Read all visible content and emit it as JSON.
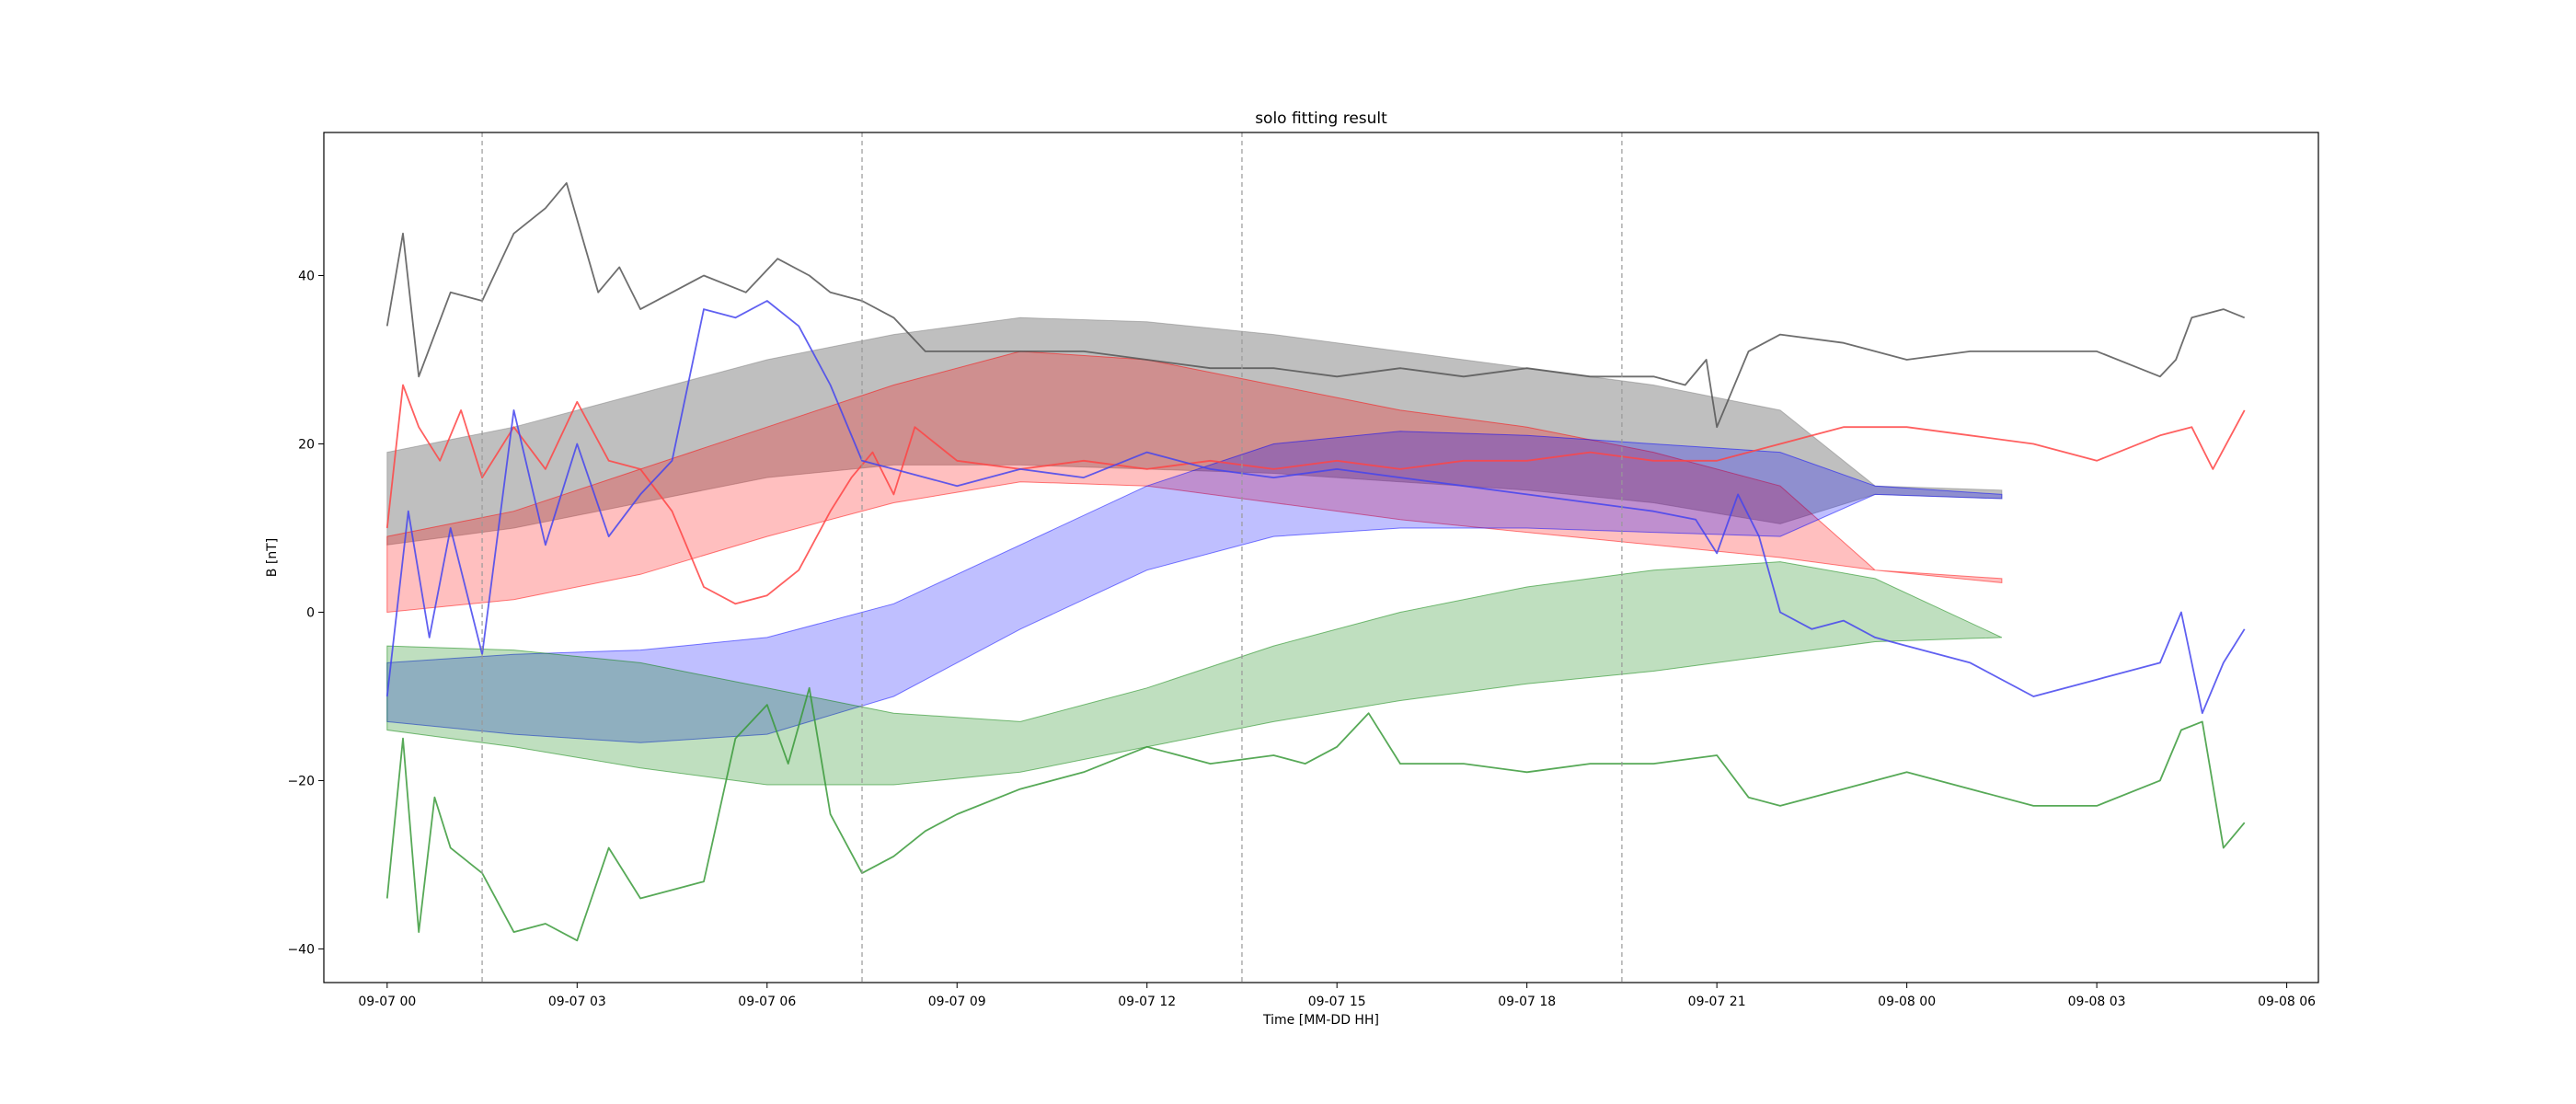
{
  "chart_data": {
    "type": "line",
    "title": "solo fitting result",
    "xlabel": "Time [MM-DD HH]",
    "ylabel": "B [nT]",
    "xlim": [
      "2020-09-06T23:00",
      "2020-09-08T06:30"
    ],
    "ylim": [
      -44,
      57
    ],
    "x_ticks": [
      {
        "t": "2020-09-07T00:00",
        "label": "09-07 00"
      },
      {
        "t": "2020-09-07T03:00",
        "label": "09-07 03"
      },
      {
        "t": "2020-09-07T06:00",
        "label": "09-07 06"
      },
      {
        "t": "2020-09-07T09:00",
        "label": "09-07 09"
      },
      {
        "t": "2020-09-07T12:00",
        "label": "09-07 12"
      },
      {
        "t": "2020-09-07T15:00",
        "label": "09-07 15"
      },
      {
        "t": "2020-09-07T18:00",
        "label": "09-07 18"
      },
      {
        "t": "2020-09-07T21:00",
        "label": "09-07 21"
      },
      {
        "t": "2020-09-08T00:00",
        "label": "09-08 00"
      },
      {
        "t": "2020-09-08T03:00",
        "label": "09-08 03"
      },
      {
        "t": "2020-09-08T06:00",
        "label": "09-08 06"
      }
    ],
    "y_ticks": [
      {
        "v": -40,
        "label": "−40"
      },
      {
        "v": -20,
        "label": "−20"
      },
      {
        "v": 0,
        "label": "0"
      },
      {
        "v": 20,
        "label": "20"
      },
      {
        "v": 40,
        "label": "40"
      }
    ],
    "vlines": [
      "2020-09-07T01:30",
      "2020-09-07T07:30",
      "2020-09-07T13:30",
      "2020-09-07T19:30"
    ],
    "grid": false,
    "bands": [
      {
        "color": "#808080",
        "opacity": 0.5,
        "x": [
          "2020-09-07T00:00",
          "2020-09-07T02:00",
          "2020-09-07T04:00",
          "2020-09-07T06:00",
          "2020-09-07T08:00",
          "2020-09-07T10:00",
          "2020-09-07T12:00",
          "2020-09-07T14:00",
          "2020-09-07T16:00",
          "2020-09-07T18:00",
          "2020-09-07T20:00",
          "2020-09-07T22:00",
          "2020-09-07T23:30",
          "2020-09-08T01:30"
        ],
        "upper": [
          19,
          22,
          26,
          30,
          33,
          35,
          34.5,
          33,
          31,
          29,
          27,
          24,
          15,
          14.5
        ],
        "lower": [
          8,
          10,
          13,
          16,
          17.5,
          17.5,
          17,
          16.5,
          15.5,
          14.5,
          13,
          10.5,
          14,
          13.5
        ]
      },
      {
        "color": "#ff0000",
        "opacity": 0.25,
        "x": [
          "2020-09-07T00:00",
          "2020-09-07T02:00",
          "2020-09-07T04:00",
          "2020-09-07T06:00",
          "2020-09-07T08:00",
          "2020-09-07T10:00",
          "2020-09-07T12:00",
          "2020-09-07T14:00",
          "2020-09-07T16:00",
          "2020-09-07T18:00",
          "2020-09-07T20:00",
          "2020-09-07T22:00",
          "2020-09-07T23:30",
          "2020-09-08T01:30"
        ],
        "upper": [
          9,
          12,
          17,
          22,
          27,
          31,
          30,
          27,
          24,
          22,
          19,
          15,
          5,
          4
        ],
        "lower": [
          0,
          1.5,
          4.5,
          9,
          13,
          15.5,
          15,
          13,
          11,
          9.5,
          8,
          6.5,
          5,
          3.5
        ]
      },
      {
        "color": "#0000ff",
        "opacity": 0.25,
        "x": [
          "2020-09-07T00:00",
          "2020-09-07T02:00",
          "2020-09-07T04:00",
          "2020-09-07T06:00",
          "2020-09-07T08:00",
          "2020-09-07T10:00",
          "2020-09-07T12:00",
          "2020-09-07T14:00",
          "2020-09-07T16:00",
          "2020-09-07T18:00",
          "2020-09-07T20:00",
          "2020-09-07T22:00",
          "2020-09-07T23:30",
          "2020-09-08T01:30"
        ],
        "upper": [
          -6,
          -5,
          -4.5,
          -3,
          1,
          8,
          15,
          20,
          21.5,
          21,
          20,
          19,
          15,
          14
        ],
        "lower": [
          -13,
          -14.5,
          -15.5,
          -14.5,
          -10,
          -2,
          5,
          9,
          10,
          10,
          9.5,
          9,
          14,
          13.5
        ]
      },
      {
        "color": "#008000",
        "opacity": 0.25,
        "x": [
          "2020-09-07T00:00",
          "2020-09-07T02:00",
          "2020-09-07T04:00",
          "2020-09-07T06:00",
          "2020-09-07T08:00",
          "2020-09-07T10:00",
          "2020-09-07T12:00",
          "2020-09-07T14:00",
          "2020-09-07T16:00",
          "2020-09-07T18:00",
          "2020-09-07T20:00",
          "2020-09-07T22:00",
          "2020-09-07T23:30",
          "2020-09-08T01:30"
        ],
        "upper": [
          -4,
          -4.5,
          -6,
          -9,
          -12,
          -13,
          -9,
          -4,
          0,
          3,
          5,
          6,
          4,
          -3
        ],
        "lower": [
          -14,
          -16,
          -18.5,
          -20.5,
          -20.5,
          -19,
          -16,
          -13,
          -10.5,
          -8.5,
          -7,
          -5,
          -3.5,
          -3
        ]
      }
    ],
    "series": [
      {
        "color": "#555555",
        "x": [
          "2020-09-07T00:00",
          "2020-09-07T00:15",
          "2020-09-07T00:30",
          "2020-09-07T01:00",
          "2020-09-07T01:30",
          "2020-09-07T02:00",
          "2020-09-07T02:30",
          "2020-09-07T02:50",
          "2020-09-07T03:20",
          "2020-09-07T03:40",
          "2020-09-07T04:00",
          "2020-09-07T05:00",
          "2020-09-07T05:40",
          "2020-09-07T06:10",
          "2020-09-07T06:40",
          "2020-09-07T07:00",
          "2020-09-07T07:30",
          "2020-09-07T08:00",
          "2020-09-07T08:30",
          "2020-09-07T09:00",
          "2020-09-07T10:00",
          "2020-09-07T11:00",
          "2020-09-07T12:00",
          "2020-09-07T13:00",
          "2020-09-07T14:00",
          "2020-09-07T15:00",
          "2020-09-07T16:00",
          "2020-09-07T17:00",
          "2020-09-07T18:00",
          "2020-09-07T19:00",
          "2020-09-07T20:00",
          "2020-09-07T20:30",
          "2020-09-07T20:50",
          "2020-09-07T21:00",
          "2020-09-07T21:30",
          "2020-09-07T22:00",
          "2020-09-07T23:00",
          "2020-09-08T00:00",
          "2020-09-08T01:00",
          "2020-09-08T02:00",
          "2020-09-08T03:00",
          "2020-09-08T03:40",
          "2020-09-08T04:00",
          "2020-09-08T04:15",
          "2020-09-08T04:30",
          "2020-09-08T05:00",
          "2020-09-08T05:20"
        ],
        "y": [
          34,
          45,
          28,
          38,
          37,
          45,
          48,
          51,
          38,
          41,
          36,
          40,
          38,
          42,
          40,
          38,
          37,
          35,
          31,
          31,
          31,
          31,
          30,
          29,
          29,
          28,
          29,
          28,
          29,
          28,
          28,
          27,
          30,
          22,
          31,
          33,
          32,
          30,
          31,
          31,
          31,
          29,
          28,
          30,
          35,
          36,
          35
        ]
      },
      {
        "color": "#ff4444",
        "x": [
          "2020-09-07T00:00",
          "2020-09-07T00:15",
          "2020-09-07T00:30",
          "2020-09-07T00:50",
          "2020-09-07T01:10",
          "2020-09-07T01:30",
          "2020-09-07T02:00",
          "2020-09-07T02:30",
          "2020-09-07T03:00",
          "2020-09-07T03:30",
          "2020-09-07T04:00",
          "2020-09-07T04:30",
          "2020-09-07T05:00",
          "2020-09-07T05:30",
          "2020-09-07T06:00",
          "2020-09-07T06:30",
          "2020-09-07T07:00",
          "2020-09-07T07:20",
          "2020-09-07T07:40",
          "2020-09-07T08:00",
          "2020-09-07T08:20",
          "2020-09-07T09:00",
          "2020-09-07T10:00",
          "2020-09-07T11:00",
          "2020-09-07T12:00",
          "2020-09-07T13:00",
          "2020-09-07T14:00",
          "2020-09-07T15:00",
          "2020-09-07T16:00",
          "2020-09-07T17:00",
          "2020-09-07T18:00",
          "2020-09-07T19:00",
          "2020-09-07T20:00",
          "2020-09-07T21:00",
          "2020-09-07T22:00",
          "2020-09-07T23:00",
          "2020-09-08T00:00",
          "2020-09-08T01:00",
          "2020-09-08T02:00",
          "2020-09-08T03:00",
          "2020-09-08T04:00",
          "2020-09-08T04:30",
          "2020-09-08T04:50",
          "2020-09-08T05:20"
        ],
        "y": [
          10,
          27,
          22,
          18,
          24,
          16,
          22,
          17,
          25,
          18,
          17,
          12,
          3,
          1,
          2,
          5,
          12,
          16,
          19,
          14,
          22,
          18,
          17,
          18,
          17,
          18,
          17,
          18,
          17,
          18,
          18,
          19,
          18,
          18,
          20,
          22,
          22,
          21,
          20,
          18,
          21,
          22,
          17,
          24
        ]
      },
      {
        "color": "#4444ee",
        "x": [
          "2020-09-07T00:00",
          "2020-09-07T00:20",
          "2020-09-07T00:40",
          "2020-09-07T01:00",
          "2020-09-07T01:30",
          "2020-09-07T02:00",
          "2020-09-07T02:30",
          "2020-09-07T03:00",
          "2020-09-07T03:30",
          "2020-09-07T04:00",
          "2020-09-07T04:30",
          "2020-09-07T05:00",
          "2020-09-07T05:30",
          "2020-09-07T06:00",
          "2020-09-07T06:30",
          "2020-09-07T07:00",
          "2020-09-07T07:30",
          "2020-09-07T08:00",
          "2020-09-07T09:00",
          "2020-09-07T10:00",
          "2020-09-07T11:00",
          "2020-09-07T12:00",
          "2020-09-07T13:00",
          "2020-09-07T14:00",
          "2020-09-07T15:00",
          "2020-09-07T16:00",
          "2020-09-07T17:00",
          "2020-09-07T18:00",
          "2020-09-07T19:00",
          "2020-09-07T20:00",
          "2020-09-07T20:40",
          "2020-09-07T21:00",
          "2020-09-07T21:20",
          "2020-09-07T21:40",
          "2020-09-07T22:00",
          "2020-09-07T22:30",
          "2020-09-07T23:00",
          "2020-09-07T23:30",
          "2020-09-08T00:00",
          "2020-09-08T01:00",
          "2020-09-08T02:00",
          "2020-09-08T03:00",
          "2020-09-08T03:30",
          "2020-09-08T04:00",
          "2020-09-08T04:20",
          "2020-09-08T04:40",
          "2020-09-08T05:00",
          "2020-09-08T05:20"
        ],
        "y": [
          -10,
          12,
          -3,
          10,
          -5,
          24,
          8,
          20,
          9,
          14,
          18,
          36,
          35,
          37,
          34,
          27,
          18,
          17,
          15,
          17,
          16,
          19,
          17,
          16,
          17,
          16,
          15,
          14,
          13,
          12,
          11,
          7,
          14,
          9,
          0,
          -2,
          -1,
          -3,
          -4,
          -6,
          -10,
          -8,
          -7,
          -6,
          0,
          -12,
          -6,
          -2
        ]
      },
      {
        "color": "#3a9a3a",
        "x": [
          "2020-09-07T00:00",
          "2020-09-07T00:15",
          "2020-09-07T00:30",
          "2020-09-07T00:45",
          "2020-09-07T01:00",
          "2020-09-07T01:30",
          "2020-09-07T02:00",
          "2020-09-07T02:30",
          "2020-09-07T03:00",
          "2020-09-07T03:30",
          "2020-09-07T04:00",
          "2020-09-07T04:30",
          "2020-09-07T05:00",
          "2020-09-07T05:30",
          "2020-09-07T06:00",
          "2020-09-07T06:20",
          "2020-09-07T06:40",
          "2020-09-07T07:00",
          "2020-09-07T07:30",
          "2020-09-07T08:00",
          "2020-09-07T08:30",
          "2020-09-07T09:00",
          "2020-09-07T10:00",
          "2020-09-07T11:00",
          "2020-09-07T12:00",
          "2020-09-07T13:00",
          "2020-09-07T14:00",
          "2020-09-07T14:30",
          "2020-09-07T15:00",
          "2020-09-07T15:30",
          "2020-09-07T16:00",
          "2020-09-07T17:00",
          "2020-09-07T18:00",
          "2020-09-07T19:00",
          "2020-09-07T20:00",
          "2020-09-07T21:00",
          "2020-09-07T21:30",
          "2020-09-07T22:00",
          "2020-09-07T23:00",
          "2020-09-08T00:00",
          "2020-09-08T01:00",
          "2020-09-08T02:00",
          "2020-09-08T03:00",
          "2020-09-08T04:00",
          "2020-09-08T04:20",
          "2020-09-08T04:40",
          "2020-09-08T05:00",
          "2020-09-08T05:20"
        ],
        "y": [
          -34,
          -15,
          -38,
          -22,
          -28,
          -31,
          -38,
          -37,
          -39,
          -28,
          -34,
          -33,
          -32,
          -15,
          -11,
          -18,
          -9,
          -24,
          -31,
          -29,
          -26,
          -24,
          -21,
          -19,
          -16,
          -18,
          -17,
          -18,
          -16,
          -12,
          -18,
          -18,
          -19,
          -18,
          -18,
          -17,
          -22,
          -23,
          -21,
          -19,
          -21,
          -23,
          -23,
          -20,
          -14,
          -13,
          -28,
          -25
        ]
      }
    ]
  }
}
